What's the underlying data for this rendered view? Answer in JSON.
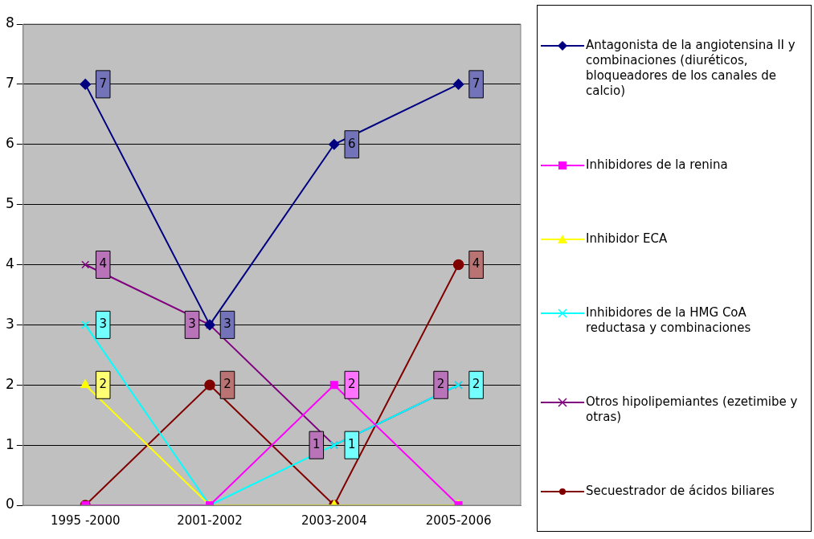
{
  "chart_data": {
    "type": "line",
    "categories": [
      "1995 -2000",
      "2001-2002",
      "2003-2004",
      "2005-2006"
    ],
    "ylim": [
      0,
      8
    ],
    "yticks": [
      0,
      1,
      2,
      3,
      4,
      5,
      6,
      7,
      8
    ],
    "grid": "y",
    "legend": "right",
    "series": [
      {
        "name": "Antagonista de la angiotensina II y combinaciones (diuréticos, bloqueadores de los canales de calcio)",
        "color": "#000080",
        "marker": "diamond",
        "values": [
          7,
          3,
          6,
          7
        ],
        "value_labels": [
          "7",
          "3",
          "6",
          "7"
        ]
      },
      {
        "name": "Inhibidores de la renina",
        "color": "#ff00ff",
        "marker": "square",
        "values": [
          0,
          0,
          2,
          0
        ],
        "value_labels": [
          null,
          null,
          "2",
          null
        ]
      },
      {
        "name": "Inhibidor ECA",
        "color": "#ffff00",
        "marker": "triangle",
        "values": [
          2,
          0,
          0,
          0
        ],
        "value_labels": [
          "2",
          null,
          null,
          null
        ]
      },
      {
        "name": "Inhibidores de la HMG CoA reductasa y combinaciones",
        "color": "#00ffff",
        "marker": "cross",
        "values": [
          3,
          0,
          1,
          2
        ],
        "value_labels": [
          "3",
          null,
          "1",
          "2"
        ]
      },
      {
        "name": "Otros hipolipemiantes (ezetimibe y otras)",
        "color": "#800080",
        "marker": "cross",
        "values": [
          4,
          3,
          1,
          2
        ],
        "value_labels": [
          "4",
          "3",
          "1",
          "2"
        ]
      },
      {
        "name": "Secuestrador de ácidos biliares",
        "color": "#800000",
        "marker": "circle",
        "values": [
          0,
          2,
          0,
          4
        ],
        "value_labels": [
          null,
          "2",
          null,
          "4"
        ]
      }
    ]
  }
}
